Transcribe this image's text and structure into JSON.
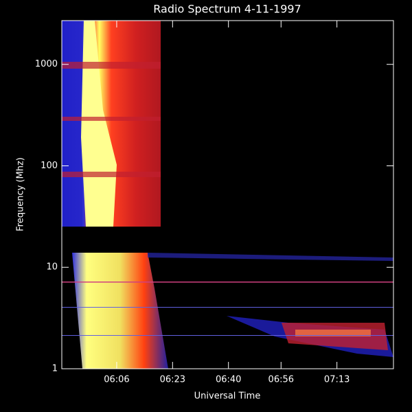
{
  "chart_data": {
    "type": "spectrogram",
    "title": "Radio Spectrum 4-11-1997",
    "xlabel": "Universal Time",
    "ylabel": "Frequency (Mhz)",
    "xlim": [
      349.3,
      450.2
    ],
    "xticks": [
      {
        "value": 366,
        "label": "06:06"
      },
      {
        "value": 383,
        "label": "06:23"
      },
      {
        "value": 400,
        "label": "06:40"
      },
      {
        "value": 416,
        "label": "06:56"
      },
      {
        "value": 433,
        "label": "07:13"
      }
    ],
    "ylim": [
      1,
      2700
    ],
    "yticks": [
      1,
      10,
      100,
      1000
    ],
    "log_y": true
  }
}
